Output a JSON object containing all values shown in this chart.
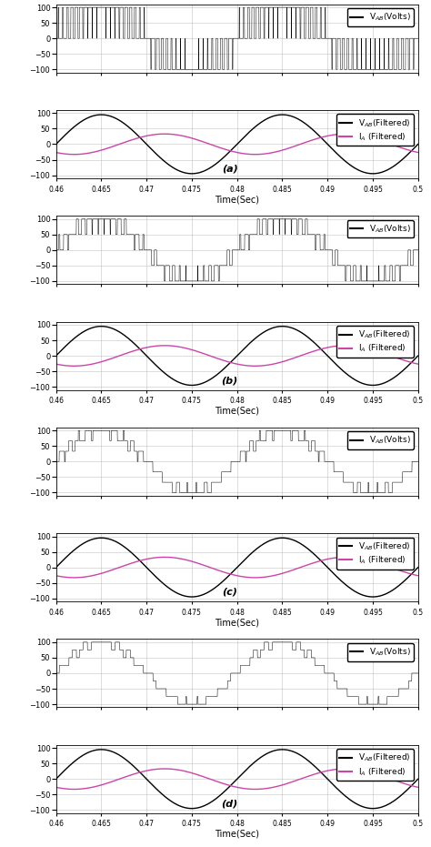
{
  "sections": [
    "a",
    "b",
    "c",
    "d"
  ],
  "xlim": [
    0.46,
    0.5
  ],
  "xticks": [
    0.46,
    0.465,
    0.47,
    0.475,
    0.48,
    0.485,
    0.49,
    0.495,
    0.5
  ],
  "pwm_ylim": [
    -110,
    110
  ],
  "pwm_yticks": [
    -100,
    -50,
    0,
    50,
    100
  ],
  "filt_ylim": [
    -110,
    110
  ],
  "filt_yticks": [
    -100,
    -50,
    0,
    50,
    100
  ],
  "pwm_amplitude": 100,
  "vab_amplitude": 95,
  "ia_amplitude": 33,
  "freq": 50,
  "black_color": "#000000",
  "pink_color": "#cc44aa",
  "bg_color": "#ffffff",
  "grid_color": "#aaaaaa",
  "xlabel": "Time(Sec)",
  "legend_vab_pwm": "V$_{AB}$(Volts)",
  "legend_vab_filt": "V$_{AB}$(Filtered)",
  "legend_ia_filt": "I$_A$ (Filtered)",
  "configs": [
    {
      "n_levels": 3,
      "carrier_freq": 2000,
      "label": "a"
    },
    {
      "n_levels": 5,
      "carrier_freq": 1500,
      "label": "b"
    },
    {
      "n_levels": 7,
      "carrier_freq": 1000,
      "label": "c"
    },
    {
      "n_levels": 9,
      "carrier_freq": 800,
      "label": "d"
    }
  ]
}
